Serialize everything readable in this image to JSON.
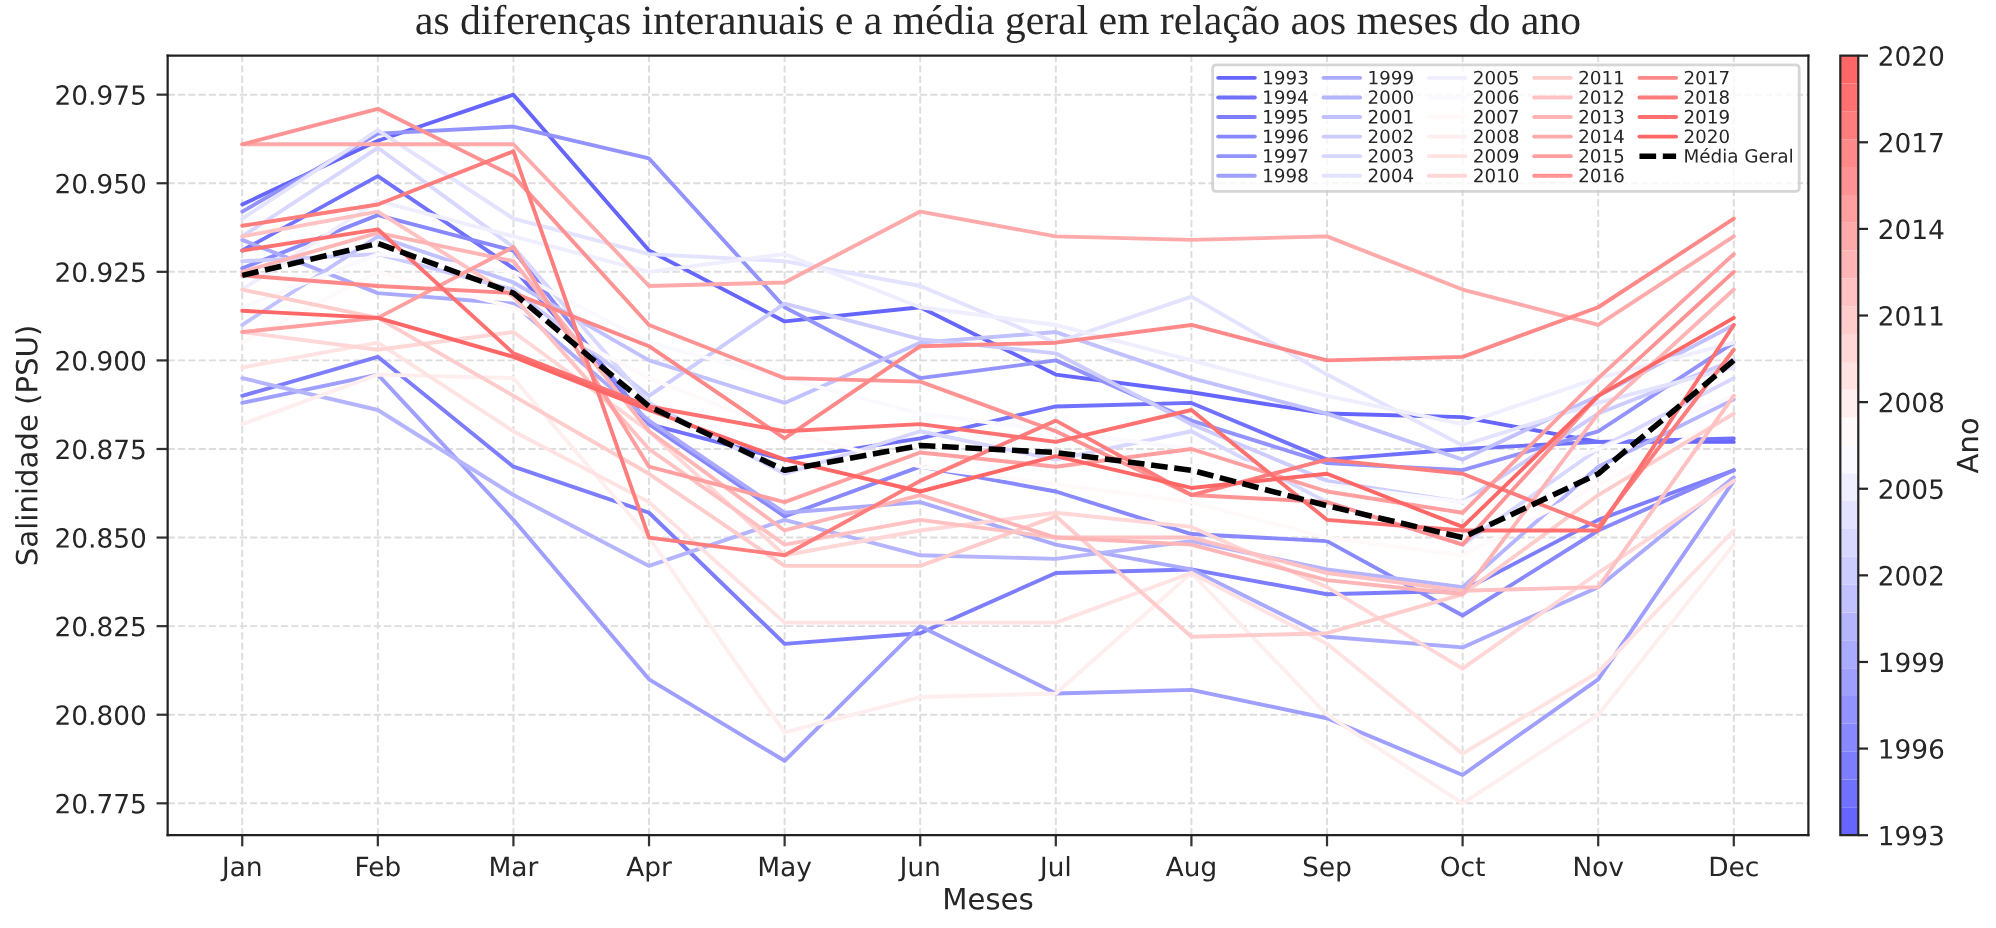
{
  "chart_data": {
    "type": "line",
    "title": "as diferenças interanuais e a média geral em relação aos meses do ano",
    "xlabel": "Meses",
    "ylabel": "Salinidade (PSU)",
    "clabel": "Ano",
    "categories": [
      "Jan",
      "Feb",
      "Mar",
      "Apr",
      "May",
      "Jun",
      "Jul",
      "Aug",
      "Sep",
      "Oct",
      "Nov",
      "Dec"
    ],
    "ylim": [
      20.766,
      20.986
    ],
    "yticks": [
      {
        "value": 20.775,
        "label": "20.775"
      },
      {
        "value": 20.8,
        "label": "20.800"
      },
      {
        "value": 20.825,
        "label": "20.825"
      },
      {
        "value": 20.85,
        "label": "20.850"
      },
      {
        "value": 20.875,
        "label": "20.875"
      },
      {
        "value": 20.9,
        "label": "20.900"
      },
      {
        "value": 20.925,
        "label": "20.925"
      },
      {
        "value": 20.95,
        "label": "20.950"
      },
      {
        "value": 20.975,
        "label": "20.975"
      }
    ],
    "clim": [
      1993,
      2020
    ],
    "cticks": [
      1993,
      1996,
      1999,
      2002,
      2005,
      2008,
      2011,
      2014,
      2017,
      2020
    ],
    "grid": true,
    "legend": "top right",
    "line_style": "solid",
    "series": [
      {
        "name": "1993",
        "color": "#6666ff",
        "values": [
          20.944,
          20.962,
          20.975,
          20.931,
          20.911,
          20.915,
          20.896,
          20.891,
          20.885,
          20.884,
          20.877,
          20.877
        ]
      },
      {
        "name": "1994",
        "color": "#7171ff",
        "values": [
          20.931,
          20.952,
          20.926,
          20.882,
          20.872,
          20.878,
          20.887,
          20.888,
          20.872,
          20.875,
          20.877,
          20.878
        ]
      },
      {
        "name": "1995",
        "color": "#7d7dff",
        "values": [
          20.89,
          20.901,
          20.87,
          20.857,
          20.82,
          20.823,
          20.84,
          20.841,
          20.834,
          20.835,
          20.855,
          20.869
        ]
      },
      {
        "name": "1996",
        "color": "#8888ff",
        "values": [
          20.926,
          20.941,
          20.931,
          20.882,
          20.856,
          20.87,
          20.863,
          20.851,
          20.849,
          20.828,
          20.852,
          20.869
        ]
      },
      {
        "name": "1997",
        "color": "#9393ff",
        "values": [
          20.942,
          20.964,
          20.966,
          20.957,
          20.915,
          20.895,
          20.9,
          20.883,
          20.871,
          20.869,
          20.88,
          20.905
        ]
      },
      {
        "name": "1998",
        "color": "#9f9fff",
        "values": [
          20.888,
          20.896,
          20.855,
          20.81,
          20.787,
          20.825,
          20.806,
          20.807,
          20.799,
          20.783,
          20.81,
          20.866
        ]
      },
      {
        "name": "1999",
        "color": "#aaaaff",
        "values": [
          20.934,
          20.919,
          20.916,
          20.883,
          20.857,
          20.86,
          20.848,
          20.841,
          20.822,
          20.819,
          20.836,
          20.867
        ]
      },
      {
        "name": "2000",
        "color": "#b5b5ff",
        "values": [
          20.895,
          20.886,
          20.862,
          20.842,
          20.855,
          20.845,
          20.844,
          20.849,
          20.841,
          20.836,
          20.87,
          20.889
        ]
      },
      {
        "name": "2001",
        "color": "#c1c1ff",
        "values": [
          20.91,
          20.935,
          20.922,
          20.9,
          20.888,
          20.905,
          20.908,
          20.895,
          20.885,
          20.872,
          20.89,
          20.91
        ]
      },
      {
        "name": "2002",
        "color": "#ccccff",
        "values": [
          20.928,
          20.93,
          20.92,
          20.89,
          20.916,
          20.906,
          20.902,
          20.882,
          20.866,
          20.86,
          20.885,
          20.9
        ]
      },
      {
        "name": "2003",
        "color": "#d7d7ff",
        "values": [
          20.935,
          20.96,
          20.932,
          20.888,
          20.868,
          20.88,
          20.872,
          20.88,
          20.86,
          20.848,
          20.875,
          20.895
        ]
      },
      {
        "name": "2004",
        "color": "#e3e3ff",
        "values": [
          20.94,
          20.965,
          20.94,
          20.93,
          20.928,
          20.921,
          20.905,
          20.918,
          20.896,
          20.876,
          20.888,
          20.898
        ]
      },
      {
        "name": "2005",
        "color": "#eeeeff",
        "values": [
          20.92,
          20.945,
          20.935,
          20.925,
          20.93,
          20.915,
          20.91,
          20.9,
          20.89,
          20.882,
          20.895,
          20.905
        ]
      },
      {
        "name": "2006",
        "color": "#f9f9ff",
        "values": [
          20.915,
          20.93,
          20.925,
          20.905,
          20.895,
          20.885,
          20.88,
          20.875,
          20.865,
          20.86,
          20.875,
          20.89
        ]
      },
      {
        "name": "2007",
        "color": "#fff9f9",
        "values": [
          20.905,
          20.925,
          20.915,
          20.895,
          20.88,
          20.87,
          20.865,
          20.86,
          20.85,
          20.845,
          20.865,
          20.885
        ]
      },
      {
        "name": "2008",
        "color": "#ffeeee",
        "values": [
          20.882,
          20.896,
          20.895,
          20.85,
          20.795,
          20.805,
          20.806,
          20.84,
          20.8,
          20.775,
          20.8,
          20.848
        ]
      },
      {
        "name": "2009",
        "color": "#ffe3e3",
        "values": [
          20.898,
          20.905,
          20.88,
          20.86,
          20.826,
          20.826,
          20.826,
          20.84,
          20.82,
          20.789,
          20.812,
          20.852
        ]
      },
      {
        "name": "2010",
        "color": "#ffd7d7",
        "values": [
          20.908,
          20.903,
          20.908,
          20.88,
          20.845,
          20.852,
          20.857,
          20.853,
          20.836,
          20.813,
          20.84,
          20.866
        ]
      },
      {
        "name": "2011",
        "color": "#ffcccc",
        "values": [
          20.92,
          20.912,
          20.89,
          20.868,
          20.842,
          20.842,
          20.856,
          20.822,
          20.823,
          20.834,
          20.862,
          20.885
        ]
      },
      {
        "name": "2012",
        "color": "#ffc1c1",
        "values": [
          20.935,
          20.942,
          20.918,
          20.875,
          20.848,
          20.855,
          20.85,
          20.85,
          20.84,
          20.835,
          20.836,
          20.89
        ]
      },
      {
        "name": "2013",
        "color": "#ffb5b5",
        "values": [
          20.925,
          20.936,
          20.928,
          20.88,
          20.852,
          20.862,
          20.85,
          20.848,
          20.838,
          20.834,
          20.885,
          20.92
        ]
      },
      {
        "name": "2014",
        "color": "#ffaaaa",
        "values": [
          20.961,
          20.961,
          20.961,
          20.921,
          20.922,
          20.942,
          20.935,
          20.934,
          20.935,
          20.92,
          20.91,
          20.935
        ]
      },
      {
        "name": "2015",
        "color": "#ff9f9f",
        "values": [
          20.908,
          20.912,
          20.932,
          20.87,
          20.86,
          20.874,
          20.87,
          20.875,
          20.863,
          20.857,
          20.895,
          20.93
        ]
      },
      {
        "name": "2016",
        "color": "#ff9393",
        "values": [
          20.961,
          20.971,
          20.952,
          20.91,
          20.895,
          20.894,
          20.88,
          20.862,
          20.86,
          20.848,
          20.89,
          20.925
        ]
      },
      {
        "name": "2017",
        "color": "#ff8888",
        "values": [
          20.924,
          20.921,
          20.919,
          20.904,
          20.878,
          20.904,
          20.905,
          20.91,
          20.9,
          20.901,
          20.915,
          20.94
        ]
      },
      {
        "name": "2018",
        "color": "#ff7d7d",
        "values": [
          20.938,
          20.944,
          20.959,
          20.85,
          20.845,
          20.866,
          20.883,
          20.862,
          20.872,
          20.868,
          20.853,
          20.903
        ]
      },
      {
        "name": "2019",
        "color": "#ff7171",
        "values": [
          20.931,
          20.937,
          20.902,
          20.887,
          20.88,
          20.882,
          20.877,
          20.886,
          20.855,
          20.852,
          20.852,
          20.91
        ]
      },
      {
        "name": "2020",
        "color": "#ff6666",
        "values": [
          20.914,
          20.912,
          20.901,
          20.886,
          20.872,
          20.863,
          20.873,
          20.864,
          20.868,
          20.853,
          20.89,
          20.912
        ]
      },
      {
        "name": "Média Geral",
        "color": "#000000",
        "line_style": "dashed",
        "values": [
          20.924,
          20.933,
          20.919,
          20.887,
          20.869,
          20.876,
          20.874,
          20.869,
          20.859,
          20.85,
          20.868,
          20.9
        ]
      }
    ]
  }
}
